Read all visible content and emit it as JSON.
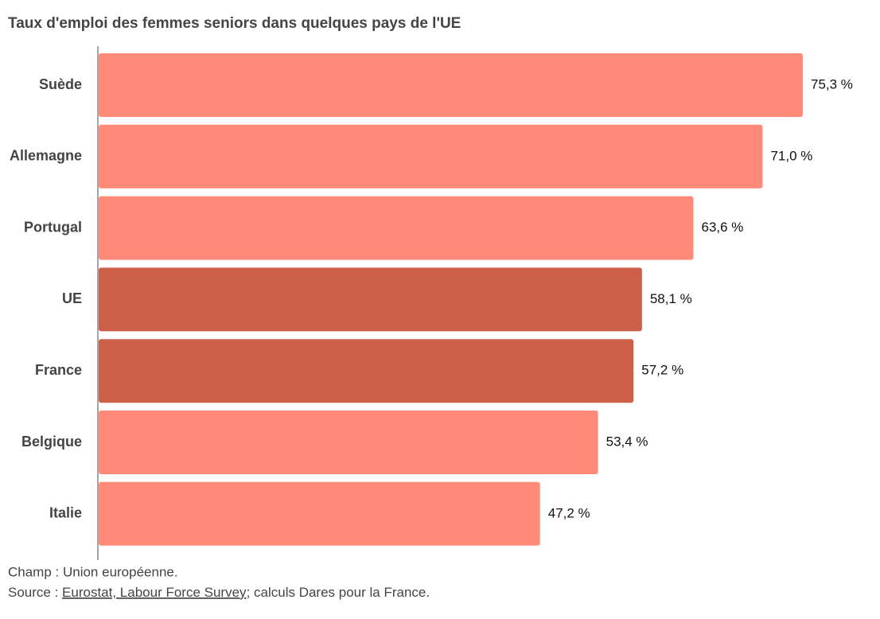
{
  "chart_data": {
    "type": "hbar",
    "title": "Taux d'emploi des femmes seniors dans quelques pays de l'UE",
    "categories": [
      "Suède",
      "Allemagne",
      "Portugal",
      "UE",
      "France",
      "Belgique",
      "Italie"
    ],
    "values": [
      75.3,
      71.0,
      63.6,
      58.1,
      57.2,
      53.4,
      47.2
    ],
    "value_labels": [
      "75,3 %",
      "71,0 %",
      "63,6 %",
      "58,1 %",
      "57,2 %",
      "53,4 %",
      "47,2 %"
    ],
    "colors": [
      "#ff8a7a",
      "#ff8a7a",
      "#ff8a7a",
      "#cc604a",
      "#cc604a",
      "#ff8a7a",
      "#ff8a7a"
    ],
    "note": "Champ : Union européenne.",
    "source_prefix": "Source : ",
    "source_link": "Eurostat, Labour Force Survey",
    "source_suffix": "; calculs Dares pour la France."
  }
}
